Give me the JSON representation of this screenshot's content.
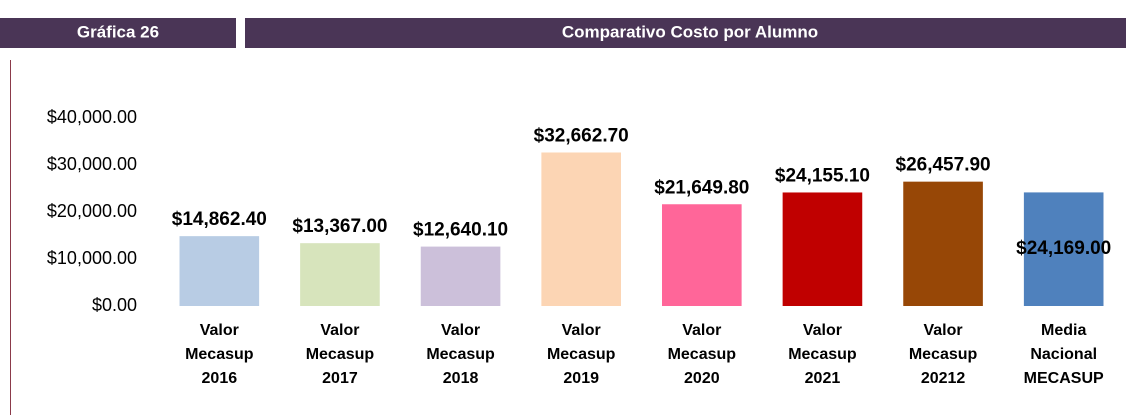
{
  "header": {
    "label": "Gráfica 26",
    "title": "Comparativo Costo por Alumno"
  },
  "chart_data": {
    "type": "bar",
    "categories": [
      "Valor Mecasup 2016",
      "Valor Mecasup 2017",
      "Valor Mecasup 2018",
      "Valor Mecasup 2019",
      "Valor Mecasup 2020",
      "Valor Mecasup 2021",
      "Valor Mecasup 20212",
      "Media Nacional MECASUP"
    ],
    "values": [
      14862.4,
      13367,
      12640.1,
      32662.7,
      21649.8,
      24155.1,
      26457.9,
      24169
    ],
    "value_labels": [
      "$14,862.40",
      "$13,367.00",
      "$12,640.10",
      "$32,662.70",
      "$21,649.80",
      "$24,155.10",
      "$26,457.90",
      "$24,169.00"
    ],
    "colors": [
      "#b8cce4",
      "#d7e4bc",
      "#ccc0da",
      "#fcd5b4",
      "#ff6699",
      "#c00000",
      "#974706",
      "#4f81bd"
    ],
    "ylim": [
      0,
      40000
    ],
    "yticks": [
      {
        "value": 0,
        "label": "$0.00"
      },
      {
        "value": 10000,
        "label": "$10,000.00"
      },
      {
        "value": 20000,
        "label": "$20,000.00"
      },
      {
        "value": 30000,
        "label": "$30,000.00"
      },
      {
        "value": 40000,
        "label": "$40,000.00"
      }
    ],
    "grid": false
  }
}
